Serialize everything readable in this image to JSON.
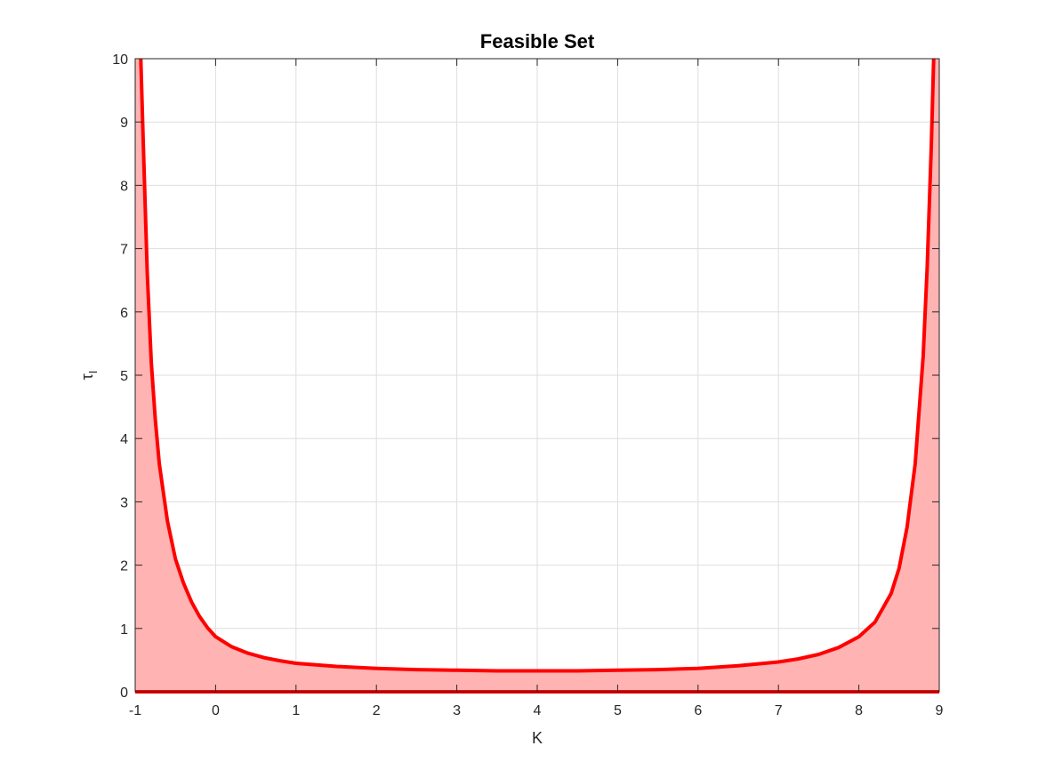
{
  "chart_data": {
    "type": "area",
    "title": "Feasible Set",
    "xlabel": "K",
    "ylabel": {
      "symbol": "τ",
      "subscript": "I"
    },
    "xlim": [
      -1,
      9
    ],
    "ylim": [
      0,
      10
    ],
    "xticks": [
      "-1",
      "0",
      "1",
      "2",
      "3",
      "4",
      "5",
      "6",
      "7",
      "8",
      "9"
    ],
    "yticks": [
      "0",
      "1",
      "2",
      "3",
      "4",
      "5",
      "6",
      "7",
      "8",
      "9",
      "10"
    ],
    "grid": true,
    "series": [
      {
        "color": "#ff0000",
        "fill_color": "#ffb3b3",
        "x": [
          -0.93,
          -0.9,
          -0.85,
          -0.8,
          -0.75,
          -0.7,
          -0.6,
          -0.5,
          -0.4,
          -0.3,
          -0.2,
          -0.1,
          0,
          0.2,
          0.4,
          0.6,
          0.8,
          1,
          1.5,
          2,
          2.5,
          3,
          3.5,
          4,
          4.5,
          5,
          5.5,
          6,
          6.5,
          7,
          7.25,
          7.5,
          7.75,
          8,
          8.2,
          8.4,
          8.5,
          8.6,
          8.7,
          8.8,
          8.85,
          8.9,
          8.93
        ],
        "y": [
          10,
          8.7,
          6.6,
          5.2,
          4.3,
          3.6,
          2.7,
          2.1,
          1.72,
          1.42,
          1.19,
          1.01,
          0.87,
          0.71,
          0.61,
          0.54,
          0.49,
          0.45,
          0.4,
          0.37,
          0.35,
          0.34,
          0.33,
          0.33,
          0.33,
          0.34,
          0.35,
          0.37,
          0.41,
          0.47,
          0.52,
          0.59,
          0.7,
          0.87,
          1.1,
          1.55,
          1.95,
          2.6,
          3.6,
          5.3,
          6.7,
          8.6,
          10
        ]
      }
    ]
  }
}
